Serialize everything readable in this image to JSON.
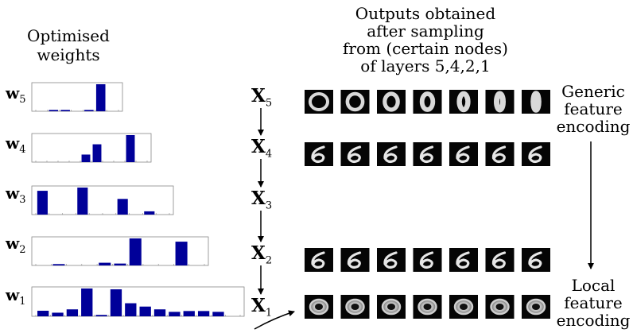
{
  "left_title": [
    "Optimised",
    "weights"
  ],
  "right_title": [
    "Outputs obtained",
    "after sampling",
    "from (certain nodes)",
    "of layers 5,4,2,1"
  ],
  "weight_rows": [
    {
      "label": "w",
      "sub": "5",
      "values": [
        0,
        0.05,
        0.05,
        0,
        0.05,
        1,
        0
      ]
    },
    {
      "label": "w",
      "sub": "4",
      "values": [
        0,
        0,
        0,
        0,
        0.28,
        0.66,
        0,
        0,
        1,
        0
      ]
    },
    {
      "label": "w",
      "sub": "3",
      "values": [
        0.88,
        0,
        0,
        1,
        0,
        0,
        0.58,
        0,
        0.12,
        0
      ]
    },
    {
      "label": "w",
      "sub": "2",
      "values": [
        0,
        0.05,
        0,
        0,
        0.1,
        0.07,
        1,
        0,
        0,
        0.88,
        0
      ]
    },
    {
      "label": "w",
      "sub": "1",
      "values": [
        0.2,
        0.13,
        0.25,
        1,
        0.05,
        0.97,
        0.47,
        0.35,
        0.25,
        0.16,
        0.19,
        0.19,
        0.16,
        0
      ]
    }
  ],
  "x_nodes": [
    {
      "label": "X",
      "sub": "5"
    },
    {
      "label": "X",
      "sub": "4"
    },
    {
      "label": "X",
      "sub": "3"
    },
    {
      "label": "X",
      "sub": "2"
    },
    {
      "label": "X",
      "sub": "1"
    }
  ],
  "generic_label": [
    "Generic",
    "feature",
    "encoding"
  ],
  "local_label": [
    "Local",
    "feature",
    "encoding"
  ],
  "bar_color": "#000099",
  "sample_rows": [
    {
      "layer": "5",
      "tiles": 7
    },
    {
      "layer": "4",
      "tiles": 7
    },
    {
      "layer": "2",
      "tiles": 7
    },
    {
      "layer": "1",
      "tiles": 7
    }
  ]
}
